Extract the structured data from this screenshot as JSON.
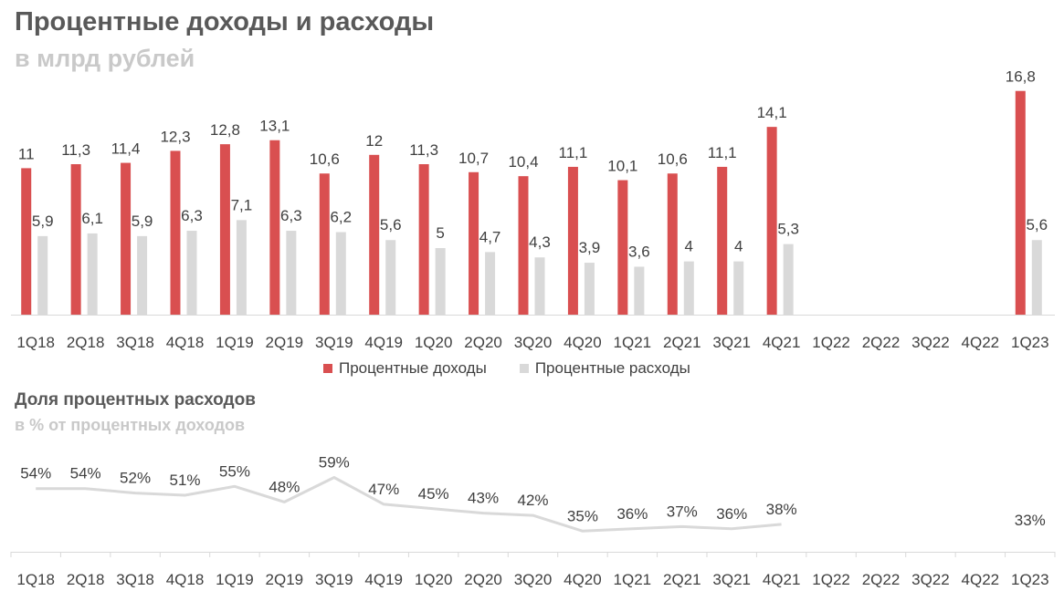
{
  "titles": {
    "main_title": "Процентные доходы и расходы",
    "main_subtitle": "в млрд рублей",
    "share_title": "Доля процентных расходов",
    "share_subtitle": "в % от процентных доходов"
  },
  "colors": {
    "income": "#d94f50",
    "expense": "#d9d9d9",
    "line": "#d9d9d9",
    "axis": "#d9d9d9",
    "label": "#404040"
  },
  "chart_data": [
    {
      "type": "bar",
      "title": "Процентные доходы и расходы",
      "subtitle": "в млрд рублей",
      "categories": [
        "1Q18",
        "2Q18",
        "3Q18",
        "4Q18",
        "1Q19",
        "2Q19",
        "3Q19",
        "4Q19",
        "1Q20",
        "2Q20",
        "3Q20",
        "4Q20",
        "1Q21",
        "2Q21",
        "3Q21",
        "4Q21",
        "1Q22",
        "2Q22",
        "3Q22",
        "4Q22",
        "1Q23"
      ],
      "series": [
        {
          "name": "Процентные доходы",
          "values": [
            11,
            11.3,
            11.4,
            12.3,
            12.8,
            13.1,
            10.6,
            12,
            11.3,
            10.7,
            10.4,
            11.1,
            10.1,
            10.6,
            11.1,
            14.1,
            null,
            null,
            null,
            null,
            16.8
          ],
          "labels": [
            "11",
            "11,3",
            "11,4",
            "12,3",
            "12,8",
            "13,1",
            "10,6",
            "12",
            "11,3",
            "10,7",
            "10,4",
            "11,1",
            "10,1",
            "10,6",
            "11,1",
            "14,1",
            "",
            "",
            "",
            "",
            "16,8"
          ]
        },
        {
          "name": "Процентные расходы",
          "values": [
            5.9,
            6.1,
            5.9,
            6.3,
            7.1,
            6.3,
            6.2,
            5.6,
            5,
            4.7,
            4.3,
            3.9,
            3.6,
            4,
            4,
            5.3,
            null,
            null,
            null,
            null,
            5.6
          ],
          "labels": [
            "5,9",
            "6,1",
            "5,9",
            "6,3",
            "7,1",
            "6,3",
            "6,2",
            "5,6",
            "5",
            "4,7",
            "4,3",
            "3,9",
            "3,6",
            "4",
            "4",
            "5,3",
            "",
            "",
            "",
            "",
            "5,6"
          ]
        }
      ],
      "ylim": [
        0,
        18
      ],
      "grid": false,
      "legend_position": "bottom"
    },
    {
      "type": "line",
      "title": "Доля процентных расходов",
      "subtitle": "в % от процентных доходов",
      "categories": [
        "1Q18",
        "2Q18",
        "3Q18",
        "4Q18",
        "1Q19",
        "2Q19",
        "3Q19",
        "4Q19",
        "1Q20",
        "2Q20",
        "3Q20",
        "4Q20",
        "1Q21",
        "2Q21",
        "3Q21",
        "4Q21",
        "1Q22",
        "2Q22",
        "3Q22",
        "4Q22",
        "1Q23"
      ],
      "series": [
        {
          "values": [
            54,
            54,
            52,
            51,
            55,
            48,
            59,
            47,
            45,
            43,
            42,
            35,
            36,
            37,
            36,
            38,
            null,
            null,
            null,
            null,
            33
          ],
          "labels": [
            "54%",
            "54%",
            "52%",
            "51%",
            "55%",
            "48%",
            "59%",
            "47%",
            "45%",
            "43%",
            "42%",
            "35%",
            "36%",
            "37%",
            "36%",
            "38%",
            "",
            "",
            "",
            "",
            "33%"
          ]
        }
      ],
      "ylim": [
        20,
        75
      ],
      "grid": false
    }
  ]
}
